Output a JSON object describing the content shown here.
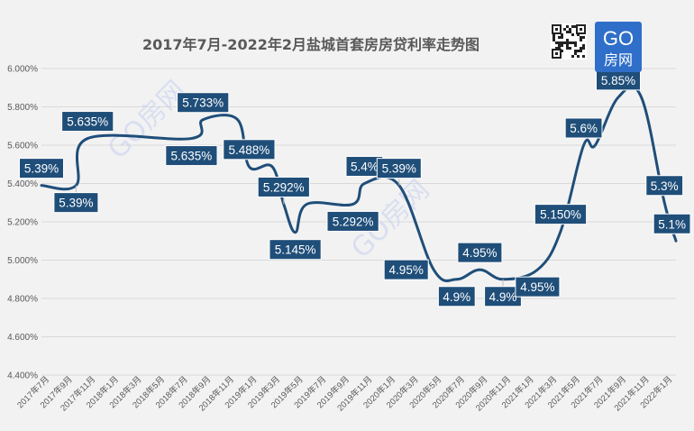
{
  "chart_data": {
    "type": "line",
    "title": "2017年7月-2022年2月盐城首套房房贷利率走势图",
    "xlabel": "",
    "ylabel": "",
    "ylim": [
      4.4,
      6.0
    ],
    "y_ticks": [
      "4.400%",
      "4.600%",
      "4.800%",
      "5.000%",
      "5.200%",
      "5.400%",
      "5.600%",
      "5.800%",
      "6.000%"
    ],
    "x_range_months": [
      "2017-07",
      "2022-02"
    ],
    "x_tick_labels": [
      "2017年7月",
      "2017年9月",
      "2017年11月",
      "2018年1月",
      "2018年3月",
      "2018年5月",
      "2018年7月",
      "2018年9月",
      "2018年11月",
      "2019年1月",
      "2019年3月",
      "2019年5月",
      "2019年7月",
      "2019年9月",
      "2019年11月",
      "2020年1月",
      "2020年3月",
      "2020年5月",
      "2020年7月",
      "2020年9月",
      "2020年11月",
      "2021年1月",
      "2021年3月",
      "2021年5月",
      "2021年7月",
      "2021年9月",
      "2021年11月",
      "2022年1月"
    ],
    "grid": true,
    "legend": "none",
    "series": [
      {
        "color": "#1f4e79",
        "points": [
          {
            "x": "2017-07",
            "y": 5.39
          },
          {
            "x": "2017-10",
            "y": 5.39
          },
          {
            "x": "2017-11",
            "y": 5.635
          },
          {
            "x": "2018-08",
            "y": 5.635
          },
          {
            "x": "2018-09",
            "y": 5.733
          },
          {
            "x": "2018-12",
            "y": 5.733
          },
          {
            "x": "2019-01",
            "y": 5.488
          },
          {
            "x": "2019-03",
            "y": 5.488
          },
          {
            "x": "2019-04",
            "y": 5.292
          },
          {
            "x": "2019-05",
            "y": 5.145
          },
          {
            "x": "2019-06",
            "y": 5.292
          },
          {
            "x": "2019-10",
            "y": 5.292
          },
          {
            "x": "2019-11",
            "y": 5.4
          },
          {
            "x": "2020-02",
            "y": 5.39
          },
          {
            "x": "2020-05",
            "y": 4.95
          },
          {
            "x": "2020-07",
            "y": 4.9
          },
          {
            "x": "2020-09",
            "y": 4.95
          },
          {
            "x": "2020-11",
            "y": 4.9
          },
          {
            "x": "2021-02",
            "y": 4.95
          },
          {
            "x": "2021-04",
            "y": 5.15
          },
          {
            "x": "2021-06",
            "y": 5.6
          },
          {
            "x": "2021-07",
            "y": 5.6
          },
          {
            "x": "2021-09",
            "y": 5.85
          },
          {
            "x": "2021-11",
            "y": 5.85
          },
          {
            "x": "2022-01",
            "y": 5.3
          },
          {
            "x": "2022-02",
            "y": 5.1
          }
        ]
      }
    ],
    "data_labels": [
      {
        "text": "5.39%",
        "x": "2017-07",
        "y": 5.39,
        "pos": "above",
        "leader": false
      },
      {
        "text": "5.39%",
        "x": "2017-10",
        "y": 5.39,
        "pos": "below",
        "leader": true
      },
      {
        "text": "5.635%",
        "x": "2017-11",
        "y": 5.635,
        "pos": "above",
        "leader": false
      },
      {
        "text": "5.635%",
        "x": "2018-08",
        "y": 5.635,
        "pos": "below",
        "leader": false
      },
      {
        "text": "5.733%",
        "x": "2018-09",
        "y": 5.733,
        "pos": "above",
        "leader": false
      },
      {
        "text": "5.488%",
        "x": "2019-01",
        "y": 5.488,
        "pos": "above",
        "leader": false
      },
      {
        "text": "5.292%",
        "x": "2019-04",
        "y": 5.292,
        "pos": "above",
        "leader": true
      },
      {
        "text": "5.145%",
        "x": "2019-05",
        "y": 5.145,
        "pos": "below",
        "leader": false
      },
      {
        "text": "5.292%",
        "x": "2019-10",
        "y": 5.292,
        "pos": "below",
        "leader": false
      },
      {
        "text": "5.4%",
        "x": "2019-11",
        "y": 5.4,
        "pos": "above",
        "leader": false
      },
      {
        "text": "5.39%",
        "x": "2020-02",
        "y": 5.39,
        "pos": "above",
        "leader": true
      },
      {
        "text": "4.95%",
        "x": "2020-05",
        "y": 4.95,
        "pos": "left",
        "leader": false
      },
      {
        "text": "4.9%",
        "x": "2020-07",
        "y": 4.9,
        "pos": "below",
        "leader": false
      },
      {
        "text": "4.95%",
        "x": "2020-09",
        "y": 4.95,
        "pos": "above",
        "leader": false
      },
      {
        "text": "4.9%",
        "x": "2020-11",
        "y": 4.9,
        "pos": "below",
        "leader": true
      },
      {
        "text": "4.95%",
        "x": "2021-02",
        "y": 4.95,
        "pos": "below",
        "leader": false
      },
      {
        "text": "5.150%",
        "x": "2021-04",
        "y": 5.15,
        "pos": "above",
        "leader": false
      },
      {
        "text": "5.6%",
        "x": "2021-06",
        "y": 5.6,
        "pos": "above",
        "leader": false
      },
      {
        "text": "5.85%",
        "x": "2021-09",
        "y": 5.85,
        "pos": "above",
        "leader": false
      },
      {
        "text": "5.3%",
        "x": "2022-01",
        "y": 5.3,
        "pos": "above",
        "leader": false
      },
      {
        "text": "5.1%",
        "x": "2022-02",
        "y": 5.1,
        "pos": "above",
        "leader": false
      }
    ]
  },
  "logo": {
    "text_top": "GO",
    "text_bottom": "房网",
    "bg_color": "#2f6fc9"
  },
  "watermark": {
    "text": "GO房网"
  },
  "colors": {
    "line": "#1f4e79",
    "background": "#f2f2f2",
    "grid": "#d9d9d9"
  }
}
